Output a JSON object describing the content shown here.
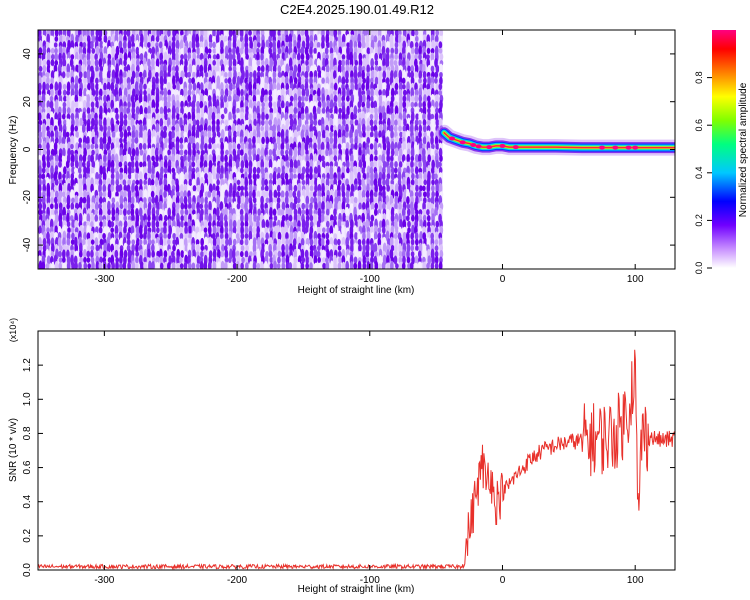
{
  "title": "C2E4.2025.190.01.49.R12",
  "colors": {
    "snr_line": "#e8302a",
    "noise_dark": "#6a00e8",
    "axis": "#000000"
  },
  "chart_data": [
    {
      "type": "heatmap",
      "xlabel": "Height of straight line (km)",
      "ylabel": "Frequency (Hz)",
      "xlim": [
        -350,
        130
      ],
      "ylim": [
        -50,
        50
      ],
      "x_ticks": [
        -300,
        -200,
        -100,
        0,
        100
      ],
      "y_ticks": [
        -40,
        -20,
        0,
        20,
        40
      ],
      "noise_region_x": [
        -350,
        -45
      ],
      "signal_track": {
        "x": [
          -44,
          -40,
          -35,
          -30,
          -25,
          -20,
          -15,
          -10,
          -5,
          0,
          5,
          20,
          40,
          60,
          80,
          100,
          130
        ],
        "frequency": [
          7,
          5,
          4,
          3,
          2.5,
          1.5,
          1,
          1,
          1.5,
          1.5,
          1,
          1,
          1,
          0.8,
          0.8,
          0.8,
          0.8
        ]
      },
      "colorbar": {
        "label": "Normalized spectral amplitude",
        "range": [
          0,
          1
        ],
        "ticks": [
          "0.0",
          "0.2",
          "0.4",
          "0.6",
          "0.8"
        ]
      }
    },
    {
      "type": "line",
      "xlabel": "Height of straight line (km)",
      "ylabel": "SNR (10 * v/v)",
      "multiplier_label": "(x10⁴)",
      "xlim": [
        -350,
        130
      ],
      "ylim": [
        0,
        1.4
      ],
      "x_ticks": [
        -300,
        -200,
        -100,
        0,
        100
      ],
      "y_ticks": [
        "0.0",
        "0.2",
        "0.4",
        "0.6",
        "0.8",
        "1.0",
        "1.2"
      ],
      "series": [
        {
          "x": [
            -350,
            -40,
            -30,
            -28,
            -25,
            -22,
            -20,
            -17,
            -15,
            -12,
            -10,
            -7,
            -5,
            0,
            5,
            10,
            20,
            30,
            40,
            50,
            60,
            70,
            80,
            85,
            90,
            95,
            100,
            102,
            105,
            110,
            120,
            130
          ],
          "y": [
            0.02,
            0.02,
            0.02,
            0.08,
            0.25,
            0.35,
            0.45,
            0.55,
            0.62,
            0.5,
            0.62,
            0.45,
            0.4,
            0.45,
            0.5,
            0.55,
            0.64,
            0.7,
            0.73,
            0.75,
            0.76,
            0.77,
            0.78,
            0.8,
            0.85,
            0.95,
            1.2,
            0.25,
            0.8,
            0.78,
            0.76,
            0.77
          ]
        }
      ]
    }
  ]
}
